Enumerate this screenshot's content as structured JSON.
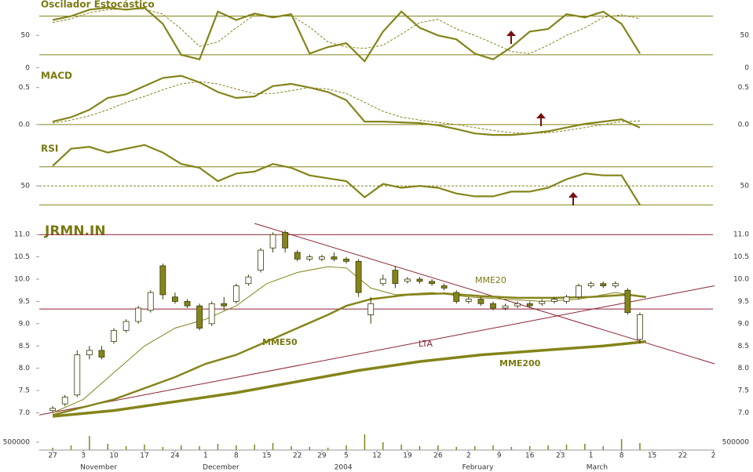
{
  "chart_data": [
    {
      "type": "line",
      "title": "Oscilador Estocástico",
      "xlim": [
        -2.2,
        108.2
      ],
      "ylim": [
        -2,
        105
      ],
      "yticks": [
        0,
        50
      ],
      "levels": [
        20,
        80
      ],
      "x": [
        0,
        3,
        6,
        9,
        12,
        15,
        18,
        21,
        24,
        27,
        30,
        33,
        36,
        39,
        42,
        45,
        48,
        51,
        54,
        57,
        60,
        63,
        66,
        69,
        72,
        75,
        78,
        81,
        84,
        87,
        90,
        93,
        96
      ],
      "series": [
        {
          "color": "#84841a",
          "dashed": false,
          "values": [
            74,
            80,
            90,
            93,
            90,
            93,
            68,
            20,
            13,
            87,
            74,
            84,
            78,
            83,
            22,
            32,
            38,
            10,
            56,
            87,
            62,
            50,
            44,
            22,
            13,
            32,
            56,
            60,
            83,
            78,
            87,
            68,
            22
          ]
        },
        {
          "color": "#84841a",
          "dashed": true,
          "values": [
            70,
            76,
            85,
            90,
            91,
            91,
            83,
            60,
            33,
            40,
            62,
            82,
            80,
            81,
            63,
            40,
            32,
            30,
            35,
            52,
            70,
            75,
            60,
            50,
            38,
            25,
            22,
            35,
            50,
            62,
            78,
            82,
            76
          ]
        }
      ]
    },
    {
      "type": "line",
      "title": "MACD",
      "xlim": [
        -2.2,
        108.2
      ],
      "ylim": [
        -0.16,
        0.73
      ],
      "yticks": [
        {
          "value": 0,
          "label": "0.0"
        },
        0.5
      ],
      "levels": [
        0
      ],
      "x": [
        0,
        3,
        6,
        9,
        12,
        15,
        18,
        21,
        24,
        27,
        30,
        33,
        36,
        39,
        42,
        45,
        48,
        51,
        54,
        57,
        60,
        63,
        66,
        69,
        72,
        75,
        78,
        81,
        84,
        87,
        90,
        93,
        96
      ],
      "series": [
        {
          "color": "#84841a",
          "dashed": false,
          "values": [
            0.04,
            0.1,
            0.2,
            0.36,
            0.41,
            0.52,
            0.63,
            0.66,
            0.57,
            0.44,
            0.36,
            0.38,
            0.52,
            0.55,
            0.5,
            0.44,
            0.33,
            0.04,
            0.04,
            0.03,
            0.02,
            -0.01,
            -0.06,
            -0.12,
            -0.14,
            -0.14,
            -0.12,
            -0.09,
            -0.04,
            0.01,
            0.04,
            0.07,
            -0.04
          ]
        },
        {
          "color": "#84841a",
          "dashed": true,
          "values": [
            0.02,
            0.06,
            0.12,
            0.2,
            0.3,
            0.38,
            0.47,
            0.55,
            0.58,
            0.55,
            0.48,
            0.42,
            0.42,
            0.46,
            0.5,
            0.48,
            0.42,
            0.3,
            0.18,
            0.1,
            0.06,
            0.03,
            0,
            -0.04,
            -0.08,
            -0.11,
            -0.12,
            -0.11,
            -0.08,
            -0.04,
            0,
            0.04,
            0.05
          ]
        }
      ]
    },
    {
      "type": "line",
      "title": "RSI",
      "xlim": [
        -2.2,
        108.2
      ],
      "ylim": [
        27,
        97
      ],
      "yticks": [
        50
      ],
      "levels": [
        30,
        70
      ],
      "midline": 50,
      "x": [
        0,
        3,
        6,
        9,
        12,
        15,
        18,
        21,
        24,
        27,
        30,
        33,
        36,
        39,
        42,
        45,
        48,
        51,
        54,
        57,
        60,
        63,
        66,
        69,
        72,
        75,
        78,
        81,
        84,
        87,
        90,
        93,
        96
      ],
      "series": [
        {
          "color": "#84841a",
          "dashed": false,
          "values": [
            71,
            89,
            91,
            85,
            89,
            93,
            85,
            73,
            69,
            55,
            63,
            65,
            73,
            69,
            61,
            58,
            55,
            38,
            52,
            48,
            50,
            48,
            42,
            39,
            39,
            44,
            44,
            48,
            57,
            63,
            61,
            61,
            30
          ]
        }
      ]
    },
    {
      "type": "candlestick",
      "title": "JRMN.IN",
      "xlim": [
        -2.2,
        108.2
      ],
      "ylim": [
        6.85,
        11.25
      ],
      "yticks": [
        {
          "value": 7,
          "label": "7.0"
        },
        7.5,
        {
          "value": 8,
          "label": "8.0"
        },
        8.5,
        {
          "value": 9,
          "label": "9.0"
        },
        9.5,
        {
          "value": 10,
          "label": "10.0"
        },
        10.5,
        {
          "value": 11,
          "label": "11.0"
        }
      ],
      "up_color": "#ffffff",
      "down_color": "#84841a",
      "x": [
        0,
        2,
        4,
        6,
        8,
        10,
        12,
        14,
        16,
        18,
        20,
        22,
        24,
        26,
        28,
        30,
        32,
        34,
        36,
        38,
        40,
        42,
        44,
        46,
        48,
        50,
        52,
        54,
        56,
        58,
        60,
        62,
        64,
        66,
        68,
        70,
        72,
        74,
        76,
        78,
        80,
        82,
        84,
        86,
        88,
        90,
        92,
        94,
        96
      ],
      "open": [
        7.05,
        7.2,
        7.4,
        8.3,
        8.4,
        8.6,
        8.85,
        9.05,
        9.3,
        10.3,
        9.6,
        9.5,
        9.4,
        9.0,
        9.45,
        9.5,
        9.9,
        10.2,
        10.7,
        11.05,
        10.6,
        10.45,
        10.45,
        10.5,
        10.45,
        10.4,
        9.2,
        9.9,
        10.2,
        9.95,
        10.0,
        9.95,
        9.85,
        9.7,
        9.5,
        9.55,
        9.45,
        9.35,
        9.4,
        9.45,
        9.45,
        9.5,
        9.5,
        9.6,
        9.85,
        9.9,
        9.85,
        9.75,
        8.65
      ],
      "high": [
        7.15,
        7.4,
        8.4,
        8.5,
        8.5,
        8.9,
        9.1,
        9.4,
        9.75,
        10.35,
        9.7,
        9.55,
        9.45,
        9.5,
        9.6,
        9.9,
        10.1,
        10.7,
        11.05,
        11.1,
        10.65,
        10.55,
        10.55,
        10.6,
        10.5,
        10.45,
        9.6,
        10.1,
        10.3,
        10.05,
        10.05,
        10.0,
        9.9,
        9.75,
        9.6,
        9.6,
        9.5,
        9.45,
        9.5,
        9.5,
        9.55,
        9.6,
        9.65,
        9.9,
        9.95,
        9.95,
        9.95,
        9.8,
        9.25
      ],
      "low": [
        7.0,
        7.15,
        7.35,
        8.2,
        8.2,
        8.55,
        8.8,
        9.0,
        9.25,
        9.55,
        9.45,
        9.35,
        8.85,
        8.95,
        9.3,
        9.45,
        9.85,
        10.15,
        10.6,
        10.6,
        10.4,
        10.4,
        10.4,
        10.4,
        10.35,
        9.6,
        9.0,
        9.85,
        9.8,
        9.9,
        9.9,
        9.85,
        9.75,
        9.45,
        9.45,
        9.4,
        9.3,
        9.3,
        9.35,
        9.35,
        9.4,
        9.45,
        9.45,
        9.55,
        9.8,
        9.8,
        9.8,
        9.2,
        8.55
      ],
      "close": [
        7.1,
        7.35,
        8.3,
        8.4,
        8.25,
        8.85,
        9.05,
        9.35,
        9.7,
        9.65,
        9.5,
        9.4,
        8.9,
        9.45,
        9.4,
        9.85,
        10.05,
        10.65,
        11.0,
        10.7,
        10.45,
        10.5,
        10.5,
        10.45,
        10.4,
        9.7,
        9.45,
        10.0,
        9.9,
        10.0,
        9.95,
        9.9,
        9.8,
        9.5,
        9.55,
        9.45,
        9.35,
        9.4,
        9.45,
        9.4,
        9.5,
        9.55,
        9.6,
        9.85,
        9.9,
        9.85,
        9.9,
        9.25,
        9.2
      ],
      "series": [
        {
          "name": "MME20",
          "color": "#84841a",
          "width": 1,
          "x": [
            0,
            5,
            10,
            15,
            20,
            25,
            30,
            35,
            40,
            45,
            48,
            52,
            56,
            62,
            68,
            74,
            80,
            86,
            92,
            97
          ],
          "values": [
            7.0,
            7.3,
            7.9,
            8.5,
            8.9,
            9.1,
            9.4,
            9.9,
            10.15,
            10.28,
            10.25,
            9.8,
            9.65,
            9.7,
            9.6,
            9.55,
            9.5,
            9.55,
            9.7,
            9.6
          ]
        },
        {
          "name": "MME50",
          "color": "#84841a",
          "width": 2.5,
          "x": [
            0,
            10,
            20,
            25,
            30,
            35,
            40,
            45,
            48,
            52,
            58,
            64,
            70,
            76,
            82,
            88,
            94,
            97
          ],
          "values": [
            6.95,
            7.3,
            7.8,
            8.1,
            8.3,
            8.6,
            8.9,
            9.2,
            9.4,
            9.55,
            9.65,
            9.68,
            9.62,
            9.58,
            9.58,
            9.6,
            9.65,
            9.6
          ]
        },
        {
          "name": "MME200",
          "color": "#84841a",
          "width": 3.5,
          "x": [
            0,
            10,
            20,
            30,
            40,
            50,
            60,
            70,
            80,
            90,
            97
          ],
          "values": [
            6.92,
            7.05,
            7.25,
            7.45,
            7.7,
            7.95,
            8.15,
            8.3,
            8.4,
            8.5,
            8.6
          ]
        }
      ],
      "trendlines": [
        {
          "name": "LTA",
          "color": "#8b2332",
          "x": [
            -2.2,
            108.2
          ],
          "values": [
            6.95,
            9.85
          ]
        },
        {
          "color": "#8b2332",
          "x": [
            33,
            108.2
          ],
          "values": [
            11.25,
            8.1
          ]
        }
      ],
      "hlines": [
        11.0,
        9.33
      ],
      "hline_color": "#8b2332"
    },
    {
      "type": "bar",
      "xlim": [
        -2.2,
        108.2
      ],
      "ylim": [
        0,
        1300000
      ],
      "yticks": [
        500000
      ],
      "color": "#84841a",
      "x": [
        0,
        3,
        6,
        9,
        12,
        15,
        18,
        21,
        24,
        27,
        30,
        33,
        36,
        39,
        42,
        45,
        48,
        51,
        54,
        57,
        60,
        63,
        66,
        69,
        72,
        75,
        78,
        81,
        84,
        87,
        90,
        93,
        96
      ],
      "values": [
        150000,
        300000,
        900000,
        400000,
        250000,
        350000,
        200000,
        300000,
        250000,
        400000,
        300000,
        350000,
        450000,
        250000,
        200000,
        150000,
        300000,
        1000000,
        500000,
        350000,
        250000,
        300000,
        200000,
        250000,
        300000,
        200000,
        250000,
        300000,
        350000,
        400000,
        250000,
        700000,
        450000
      ],
      "xticks": [
        {
          "value": 0,
          "label": "27"
        },
        {
          "value": 5,
          "label": "3"
        },
        {
          "value": 10,
          "label": "10"
        },
        {
          "value": 15,
          "label": "17"
        },
        {
          "value": 20,
          "label": "24"
        },
        {
          "value": 25,
          "label": "1"
        },
        {
          "value": 30,
          "label": "8"
        },
        {
          "value": 35,
          "label": "15"
        },
        {
          "value": 40,
          "label": "22"
        },
        {
          "value": 44,
          "label": "29"
        },
        {
          "value": 48,
          "label": "5"
        },
        {
          "value": 53,
          "label": "12"
        },
        {
          "value": 58,
          "label": "19"
        },
        {
          "value": 63,
          "label": "26"
        },
        {
          "value": 68,
          "label": "2"
        },
        {
          "value": 73,
          "label": "9"
        },
        {
          "value": 78,
          "label": "16"
        },
        {
          "value": 83,
          "label": "23"
        },
        {
          "value": 88,
          "label": "1"
        },
        {
          "value": 93,
          "label": "8"
        },
        {
          "value": 98,
          "label": "15"
        },
        {
          "value": 103,
          "label": "22"
        },
        {
          "value": 108,
          "label": "2"
        }
      ],
      "month_ticks": [
        {
          "value": 7.5,
          "label": "November"
        },
        {
          "value": 27.5,
          "label": "December"
        },
        {
          "value": 47.5,
          "label": "2004"
        },
        {
          "value": 69.5,
          "label": "February"
        },
        {
          "value": 89,
          "label": "March"
        }
      ]
    }
  ]
}
